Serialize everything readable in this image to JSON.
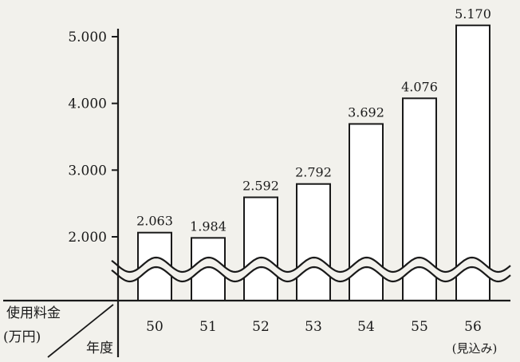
{
  "chart_data": {
    "type": "bar",
    "title": "",
    "xlabel": "年度",
    "ylabel": "使用料金（万円）",
    "ylabel_lines": [
      "使用料金",
      "(万円)"
    ],
    "categories": [
      "50",
      "51",
      "52",
      "53",
      "54",
      "55",
      "56"
    ],
    "category_sublabels": [
      "",
      "",
      "",
      "",
      "",
      "",
      "(見込み)"
    ],
    "values": [
      2063,
      1984,
      2592,
      2792,
      3692,
      4076,
      5170
    ],
    "value_labels": [
      "2.063",
      "1.984",
      "2.592",
      "2.792",
      "3.692",
      "4.076",
      "5.170"
    ],
    "yticks": [
      2000,
      3000,
      4000,
      5000
    ],
    "ytick_labels": [
      "2.000",
      "3.000",
      "4.000",
      "5.000"
    ],
    "ylim": [
      2000,
      5000
    ],
    "axis_break": true,
    "grid": false,
    "bar_fill": "#ffffff",
    "ink_color": "#1a1a1a",
    "background": "#f2f1ec"
  }
}
